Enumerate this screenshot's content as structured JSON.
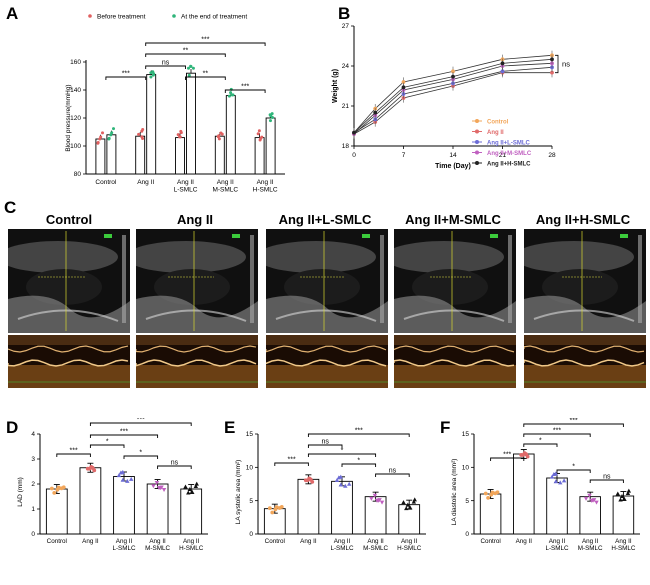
{
  "panels": {
    "A": "A",
    "B": "B",
    "C": "C",
    "D": "D",
    "E": "E",
    "F": "F"
  },
  "colors": {
    "before": "#e06060",
    "after": "#2fb57a",
    "control": "#f2a65a",
    "angii": "#e06a6a",
    "lsmlc": "#6b6bd6",
    "msmlc": "#c060c0",
    "hsmlc": "#222222"
  },
  "chart_data": [
    {
      "id": "A",
      "type": "bar",
      "legend": [
        "Before treatment",
        "At the end of treatment"
      ],
      "ylabel": "Blood pressure(mmHg)",
      "ylim": [
        80,
        160
      ],
      "yticks": [
        80,
        100,
        120,
        140,
        160
      ],
      "categories": [
        [
          "Control"
        ],
        [
          "Ang II"
        ],
        [
          "Ang II",
          "L-SMLC"
        ],
        [
          "Ang II",
          "M-SMLC"
        ],
        [
          "Ang II",
          "H-SMLC"
        ]
      ],
      "series": [
        {
          "name": "Before treatment",
          "values": [
            105,
            107,
            106,
            107,
            106
          ]
        },
        {
          "name": "At the end of treatment",
          "values": [
            108,
            151,
            152,
            136,
            120
          ]
        }
      ],
      "significance": [
        "***",
        "***",
        "**",
        "ns",
        "**",
        "***"
      ]
    },
    {
      "id": "B",
      "type": "line",
      "xlabel": "Time (Day)",
      "ylabel": "Weight (g)",
      "x": [
        0,
        3,
        7,
        14,
        21,
        28
      ],
      "xticks": [
        0,
        7,
        14,
        21,
        28
      ],
      "ylim": [
        18,
        27
      ],
      "yticks": [
        18,
        21,
        24,
        27
      ],
      "series": [
        {
          "name": "Control",
          "values": [
            19.0,
            20.8,
            22.8,
            23.6,
            24.5,
            24.8
          ]
        },
        {
          "name": "Ang II",
          "values": [
            18.9,
            19.8,
            21.6,
            22.5,
            23.5,
            23.5
          ]
        },
        {
          "name": "Ang II+L-SMLC",
          "values": [
            19.0,
            20.0,
            21.9,
            22.7,
            23.6,
            23.9
          ]
        },
        {
          "name": "Ang II+M-SMLC",
          "values": [
            18.9,
            20.3,
            22.2,
            23.0,
            24.0,
            24.2
          ]
        },
        {
          "name": "Ang II+H-SMLC",
          "values": [
            19.0,
            20.5,
            22.4,
            23.2,
            24.2,
            24.5
          ]
        }
      ],
      "annotation": "ns"
    },
    {
      "id": "D",
      "type": "bar",
      "ylabel": "LAD (mm)",
      "ylim": [
        0,
        4
      ],
      "yticks": [
        0,
        1,
        2,
        3,
        4
      ],
      "categories": [
        [
          "Control"
        ],
        [
          "Ang II"
        ],
        [
          "Ang II",
          "L-SMLC"
        ],
        [
          "Ang II",
          "M-SMLC"
        ],
        [
          "Ang II",
          "H-SMLC"
        ]
      ],
      "values": [
        1.8,
        2.65,
        2.3,
        2.0,
        1.8
      ],
      "significance": [
        "***",
        "***",
        "***",
        "*",
        "*",
        "ns"
      ]
    },
    {
      "id": "E",
      "type": "bar",
      "ylabel": "LA systolic area (mm²)",
      "ylim": [
        0,
        15
      ],
      "yticks": [
        0,
        5,
        10,
        15
      ],
      "categories": [
        [
          "Control"
        ],
        [
          "Ang II"
        ],
        [
          "Ang II",
          "L-SMLC"
        ],
        [
          "Ang II",
          "M-SMLC"
        ],
        [
          "Ang II",
          "H-SMLC"
        ]
      ],
      "values": [
        3.8,
        8.2,
        7.9,
        5.6,
        4.4
      ],
      "significance": [
        "***",
        "***",
        "ns",
        "*",
        "*",
        "ns"
      ]
    },
    {
      "id": "F",
      "type": "bar",
      "ylabel": "LA diastolic area (mm²)",
      "ylim": [
        0,
        15
      ],
      "yticks": [
        0,
        5,
        10,
        15
      ],
      "categories": [
        [
          "Control"
        ],
        [
          "Ang II"
        ],
        [
          "Ang II",
          "L-SMLC"
        ],
        [
          "Ang II",
          "M-SMLC"
        ],
        [
          "Ang II",
          "H-SMLC"
        ]
      ],
      "values": [
        6.0,
        12.0,
        8.4,
        5.6,
        5.7
      ],
      "significance": [
        "***",
        "***",
        "*",
        "***",
        "*",
        "ns"
      ]
    }
  ],
  "echo": {
    "titles": [
      "Control",
      "Ang II",
      "Ang II+L-SMLC",
      "Ang II+M-SMLC",
      "Ang II+H-SMLC"
    ]
  }
}
